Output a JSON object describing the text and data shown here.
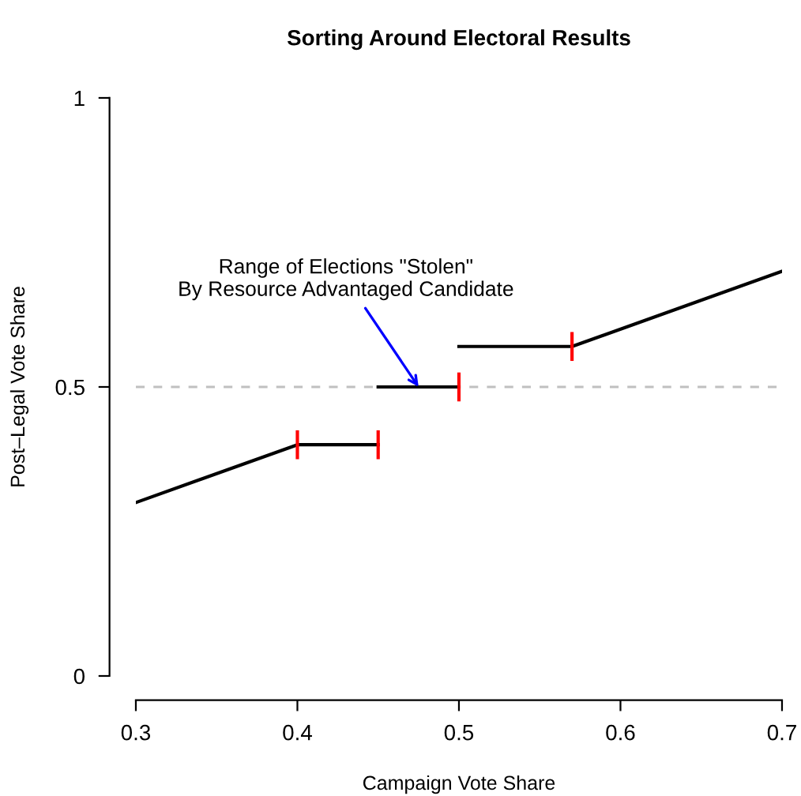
{
  "chart_data": {
    "type": "line",
    "title": "Sorting Around Electoral Results",
    "xlabel": "Campaign Vote Share",
    "ylabel": "Post–Legal Vote Share",
    "xlim": [
      0.3,
      0.7
    ],
    "ylim": [
      0,
      1
    ],
    "xticks": [
      0.3,
      0.4,
      0.5,
      0.6,
      0.7
    ],
    "yticks": [
      0,
      0.5,
      1
    ],
    "series": [
      {
        "color": "#000000",
        "x": [
          0.3,
          0.4,
          0.45,
          null,
          0.45,
          0.5,
          null,
          0.5,
          0.57,
          0.7
        ],
        "values": [
          0.3,
          0.4,
          0.4,
          null,
          0.5,
          0.5,
          null,
          0.57,
          0.57,
          0.7
        ],
        "errors": [
          null,
          0.025,
          0.025,
          null,
          null,
          0.025,
          null,
          null,
          0.025,
          null
        ]
      }
    ],
    "ref_lines": [
      {
        "axis": "y",
        "value": 0.5,
        "color": "#c0c0c0",
        "line_style": "dashed"
      }
    ],
    "annotations": [
      {
        "text": "Range of Elections \"Stolen\"\nBy Resource Advantaged Candidate",
        "x": 0.475,
        "y": 0.5
      }
    ],
    "grid": false,
    "legend": false
  }
}
